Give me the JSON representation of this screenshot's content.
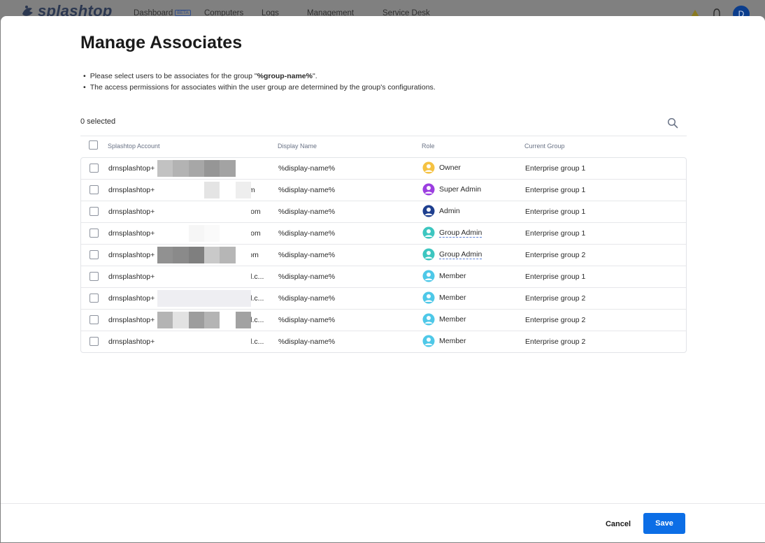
{
  "app": {
    "brand": "splashtop",
    "nav": [
      {
        "label": "Dashboard",
        "badge": "BETA"
      },
      {
        "label": "Computers"
      },
      {
        "label": "Logs"
      },
      {
        "label": "Management"
      },
      {
        "label": "Service Desk"
      }
    ],
    "user_initial": "D"
  },
  "modal": {
    "title": "Manage Associates",
    "notes": [
      {
        "pre": "Please select users to be associates for the group \"",
        "bold": "%group-name%",
        "post": "\"."
      },
      {
        "text": "The access permissions for associates within the user group are determined by the group's configurations."
      }
    ],
    "selected_count": "0 selected",
    "columns": {
      "account": "Splashtop Account",
      "display": "Display Name",
      "role": "Role",
      "group": "Current Group"
    },
    "rows": [
      {
        "account_prefix": "drnsplashtop+",
        "account_suffix": "",
        "display": "%display-name%",
        "role": "Owner",
        "role_icon": "owner-icon",
        "group": "Enterprise group 1"
      },
      {
        "account_prefix": "drnsplashtop+",
        "account_suffix": "om",
        "display": "%display-name%",
        "role": "Super Admin",
        "role_icon": "super-admin-icon",
        "group": "Enterprise group 1"
      },
      {
        "account_prefix": "drnsplashtop+",
        "account_suffix": ".com",
        "display": "%display-name%",
        "role": "Admin",
        "role_icon": "admin-icon",
        "group": "Enterprise group 1"
      },
      {
        "account_prefix": "drnsplashtop+",
        "account_suffix": ".com",
        "display": "%display-name%",
        "role": "Group Admin",
        "role_icon": "group-admin-icon",
        "group": "Enterprise group 1"
      },
      {
        "account_prefix": "drnsplashtop+",
        "account_suffix": "com",
        "display": "%display-name%",
        "role": "Group Admin",
        "role_icon": "group-admin-icon",
        "group": "Enterprise group 2"
      },
      {
        "account_prefix": "drnsplashtop+",
        "account_suffix": "ail.c...",
        "display": "%display-name%",
        "role": "Member",
        "role_icon": "member-icon",
        "group": "Enterprise group 1"
      },
      {
        "account_prefix": "drnsplashtop+",
        "account_suffix": "ail.c...",
        "display": "%display-name%",
        "role": "Member",
        "role_icon": "member-icon",
        "group": "Enterprise group 2"
      },
      {
        "account_prefix": "drnsplashtop+",
        "account_suffix": "ail.c...",
        "display": "%display-name%",
        "role": "Member",
        "role_icon": "member-icon",
        "group": "Enterprise group 2"
      },
      {
        "account_prefix": "drnsplashtop+",
        "account_suffix": "ail.c...",
        "display": "%display-name%",
        "role": "Member",
        "role_icon": "member-icon",
        "group": "Enterprise group 2"
      }
    ],
    "actions": {
      "cancel": "Cancel",
      "save": "Save"
    }
  },
  "colors": {
    "primary": "#0c6ee6",
    "owner": "#f5c242",
    "super_admin": "#9b3ee0",
    "admin": "#1e3f8f",
    "group_admin": "#3cc6c0",
    "member": "#4ec8e8"
  }
}
